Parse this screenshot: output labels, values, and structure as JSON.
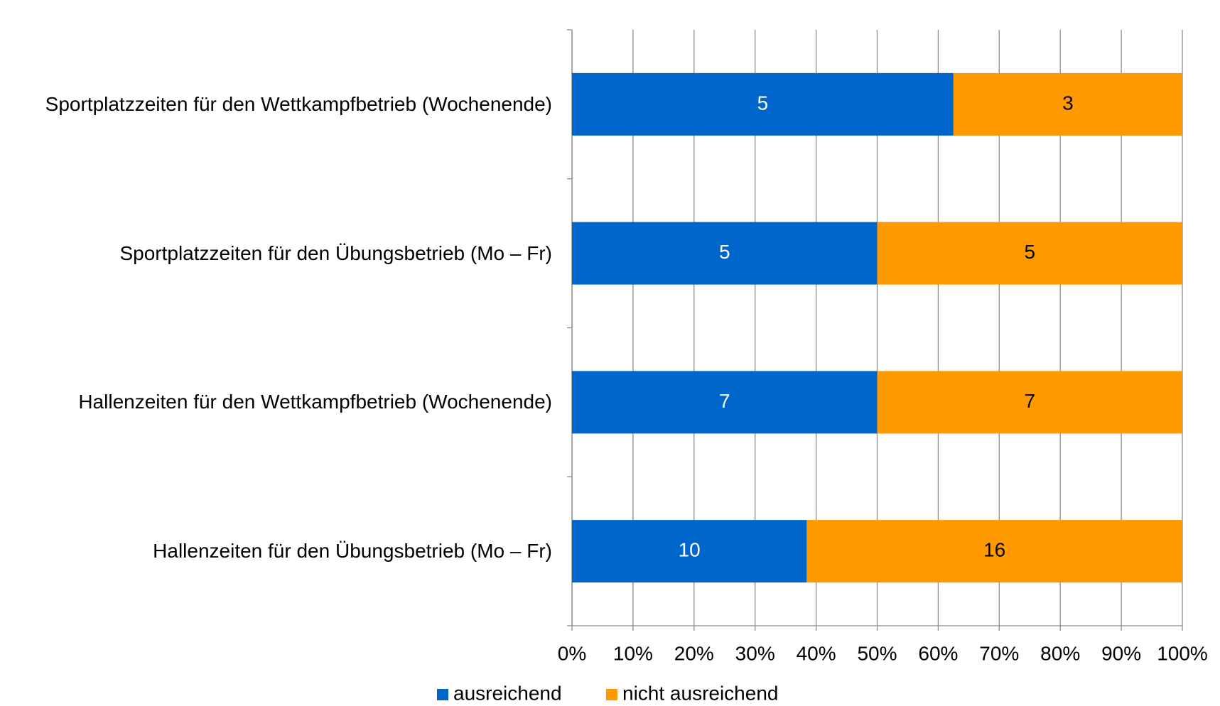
{
  "chart_data": {
    "type": "bar",
    "orientation": "horizontal",
    "stacking": "percent",
    "categories": [
      "Sportplatzzeiten für den Wettkampfbetrieb (Wochenende)",
      "Sportplatzzeiten für den Übungsbetrieb (Mo – Fr)",
      "Hallenzeiten für den Wettkampfbetrieb (Wochenende)",
      "Hallenzeiten für den Übungsbetrieb (Mo – Fr)"
    ],
    "series": [
      {
        "name": "ausreichend",
        "color": "#0066cc",
        "values": [
          5,
          5,
          7,
          10
        ]
      },
      {
        "name": "nicht ausreichend",
        "color": "#ff9900",
        "values": [
          3,
          5,
          7,
          16
        ]
      }
    ],
    "xlim": [
      0,
      100
    ],
    "xticks": [
      {
        "value": 0,
        "label": "0%"
      },
      {
        "value": 10,
        "label": "10%"
      },
      {
        "value": 20,
        "label": "20%"
      },
      {
        "value": 30,
        "label": "30%"
      },
      {
        "value": 40,
        "label": "40%"
      },
      {
        "value": 50,
        "label": "50%"
      },
      {
        "value": 60,
        "label": "60%"
      },
      {
        "value": 70,
        "label": "70%"
      },
      {
        "value": 80,
        "label": "80%"
      },
      {
        "value": 90,
        "label": "90%"
      },
      {
        "value": 100,
        "label": "100%"
      }
    ],
    "grid": true,
    "legend": "bottom"
  }
}
